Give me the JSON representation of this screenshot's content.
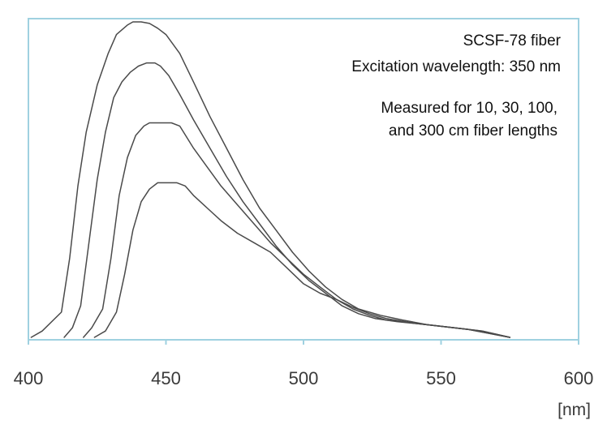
{
  "chart_data": {
    "type": "line",
    "title": "",
    "xlabel": "[nm]",
    "ylabel": "",
    "xlim": [
      400,
      600
    ],
    "ylim": [
      0,
      1
    ],
    "x_ticks": [
      "400",
      "450",
      "500",
      "550",
      "600"
    ],
    "grid": false,
    "legend": "none",
    "annotations": [
      "SCSF-78 fiber",
      "Excitation wavelength: 350 nm",
      "Measured for 10, 30, 100,",
      "and 300 cm fiber lengths"
    ],
    "series": [
      {
        "x": [
          401,
          405,
          412,
          415,
          418,
          421,
          425,
          429,
          432,
          434,
          436,
          438,
          441,
          444,
          447,
          450,
          455,
          460,
          466,
          472,
          478,
          484,
          490,
          496,
          502,
          508,
          514,
          520,
          528,
          536,
          545,
          555,
          565,
          575
        ],
        "y": [
          0.0,
          0.02,
          0.08,
          0.25,
          0.48,
          0.65,
          0.8,
          0.9,
          0.96,
          0.975,
          0.99,
          1.0,
          1.0,
          0.995,
          0.98,
          0.96,
          0.9,
          0.81,
          0.7,
          0.6,
          0.5,
          0.41,
          0.34,
          0.27,
          0.21,
          0.16,
          0.12,
          0.09,
          0.07,
          0.055,
          0.04,
          0.03,
          0.02,
          0.0
        ]
      },
      {
        "x": [
          413,
          416,
          419,
          422,
          425,
          428,
          431,
          434,
          437,
          440,
          443,
          446,
          448,
          451,
          455,
          460,
          466,
          472,
          478,
          484,
          490,
          496,
          502,
          508,
          514,
          520,
          526,
          534,
          545,
          555,
          565,
          575
        ],
        "y": [
          0.0,
          0.03,
          0.1,
          0.3,
          0.5,
          0.65,
          0.76,
          0.81,
          0.84,
          0.86,
          0.87,
          0.87,
          0.86,
          0.83,
          0.77,
          0.69,
          0.6,
          0.51,
          0.43,
          0.36,
          0.29,
          0.23,
          0.18,
          0.14,
          0.1,
          0.075,
          0.06,
          0.05,
          0.04,
          0.03,
          0.02,
          0.0
        ]
      },
      {
        "x": [
          420,
          423,
          427,
          430,
          433,
          436,
          439,
          442,
          444,
          446,
          449,
          452,
          455,
          460,
          465,
          470,
          476,
          482,
          488,
          494,
          500,
          506,
          512,
          518,
          524,
          530,
          540,
          550,
          560,
          575
        ],
        "y": [
          0.0,
          0.03,
          0.09,
          0.25,
          0.45,
          0.57,
          0.64,
          0.67,
          0.68,
          0.68,
          0.68,
          0.68,
          0.67,
          0.6,
          0.54,
          0.48,
          0.42,
          0.36,
          0.3,
          0.25,
          0.2,
          0.16,
          0.12,
          0.095,
          0.075,
          0.06,
          0.045,
          0.035,
          0.025,
          0.0
        ]
      },
      {
        "x": [
          424,
          428,
          432,
          435,
          438,
          441,
          444,
          447,
          450,
          454,
          457,
          460,
          465,
          470,
          476,
          482,
          488,
          494,
          500,
          506,
          512,
          518,
          524,
          530,
          540,
          550,
          560,
          575
        ],
        "y": [
          0.0,
          0.02,
          0.08,
          0.2,
          0.34,
          0.43,
          0.47,
          0.49,
          0.49,
          0.49,
          0.48,
          0.45,
          0.41,
          0.37,
          0.33,
          0.3,
          0.27,
          0.22,
          0.17,
          0.14,
          0.12,
          0.09,
          0.07,
          0.055,
          0.045,
          0.035,
          0.025,
          0.0
        ]
      }
    ],
    "colors": {
      "frame": "#9fd1e0",
      "line": "#4a4a4a",
      "text": "#111111",
      "tick_text": "#3a3a3a"
    }
  }
}
